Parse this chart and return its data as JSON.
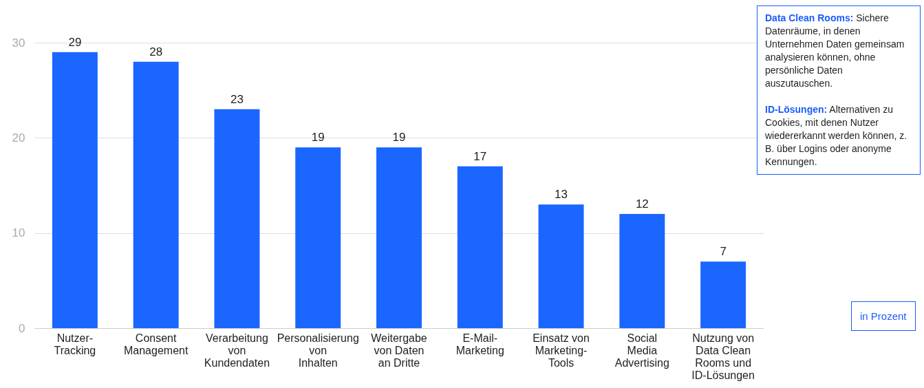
{
  "chart_data": {
    "type": "bar",
    "categories": [
      "Nutzer-Tracking",
      "Consent Management",
      "Verarbeitung von Kundendaten",
      "Personalisierung von Inhalten",
      "Weitergabe von Daten an Dritte",
      "E-Mail-Marketing",
      "Einsatz von Marketing-Tools",
      "Social Media Advertising",
      "Nutzung von Data Clean Rooms und ID-Lösungen"
    ],
    "values": [
      29,
      28,
      23,
      19,
      19,
      17,
      13,
      12,
      7
    ],
    "color": "#1a66ff",
    "ylim": [
      0,
      30
    ],
    "yticks": [
      0,
      10,
      20,
      30
    ],
    "grid": "y",
    "data_labels": true,
    "annotations": [
      "Data Clean Rooms: Sichere Datenräume, in denen Unternehmen Daten gemeinsam analysieren können, ohne persönliche Daten auszutauschen.",
      "ID-Lösungen: Alternativen zu Cookies, mit denen Nutzer wiedererkannt werden können, z. B. über Logins oder anonyme Kennungen.",
      "in Prozent"
    ]
  }
}
